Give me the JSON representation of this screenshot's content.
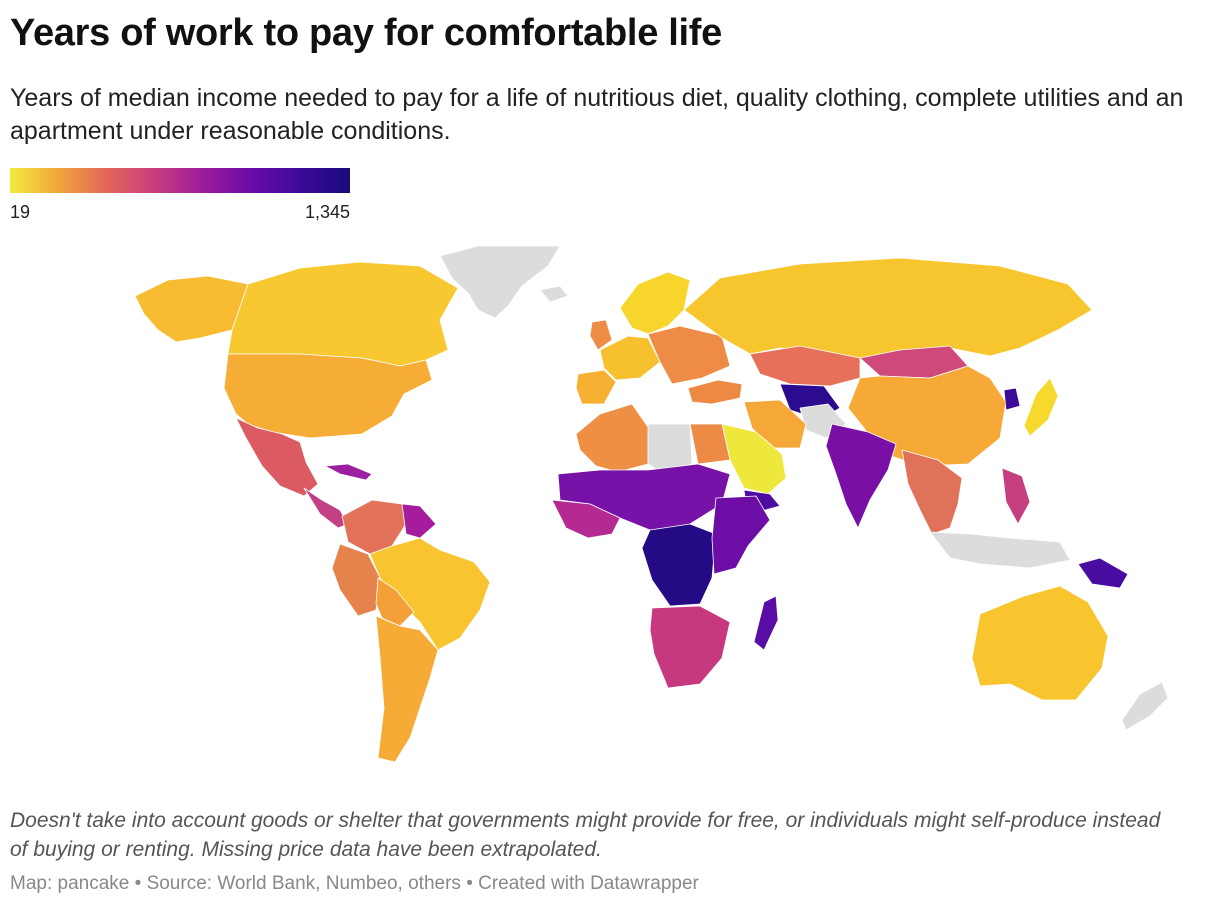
{
  "header": {
    "title": "Years of work to pay for comfortable life",
    "subtitle": "Years of median income needed to pay for a life of nutritious diet, quality clothing, complete utilities and an apartment under reasonable conditions."
  },
  "legend": {
    "min_label": "19",
    "max_label": "1,345",
    "gradient_colors": [
      "#f2ec3f",
      "#f2a43a",
      "#e2665a",
      "#c83c7e",
      "#9a1b9c",
      "#6a0aa8",
      "#3c0a98",
      "#1a0a7a"
    ]
  },
  "colors": {
    "no_data": "#dcdcdc",
    "border": "#ffffff"
  },
  "map": {
    "regions": [
      {
        "name": "Greenland",
        "color": "#dcdcdc"
      },
      {
        "name": "Alaska",
        "color": "#f7bc31"
      },
      {
        "name": "Canada",
        "color": "#f7c82f"
      },
      {
        "name": "United States",
        "color": "#f6ad35"
      },
      {
        "name": "Mexico",
        "color": "#dc5a62"
      },
      {
        "name": "Central America",
        "color": "#c23f84"
      },
      {
        "name": "Cuba",
        "color": "#9d1fa1"
      },
      {
        "name": "Colombia / Venezuela",
        "color": "#e2725a"
      },
      {
        "name": "Guyana / Suriname",
        "color": "#a51d9e"
      },
      {
        "name": "Peru / Ecuador",
        "color": "#e6834d"
      },
      {
        "name": "Brazil",
        "color": "#f8c42f"
      },
      {
        "name": "Bolivia",
        "color": "#f3a038"
      },
      {
        "name": "Argentina / Chile",
        "color": "#f6ab36"
      },
      {
        "name": "Iceland",
        "color": "#dcdcdc"
      },
      {
        "name": "Scandinavia",
        "color": "#f7d52c"
      },
      {
        "name": "United Kingdom",
        "color": "#ee8b44"
      },
      {
        "name": "Western Europe",
        "color": "#f7c02f"
      },
      {
        "name": "Iberia",
        "color": "#f6b133"
      },
      {
        "name": "Eastern Europe",
        "color": "#ee8b46"
      },
      {
        "name": "Russia",
        "color": "#f7c62f"
      },
      {
        "name": "Kazakhstan",
        "color": "#e6705a"
      },
      {
        "name": "Mongolia",
        "color": "#cf497a"
      },
      {
        "name": "China",
        "color": "#f6a936"
      },
      {
        "name": "North Korea",
        "color": "#3d0b9a"
      },
      {
        "name": "Japan",
        "color": "#f7d82c"
      },
      {
        "name": "Turkey",
        "color": "#ee8944"
      },
      {
        "name": "Central Asia",
        "color": "#2c0b90"
      },
      {
        "name": "Afghanistan",
        "color": "#dcdcdc"
      },
      {
        "name": "Iran",
        "color": "#f5a837"
      },
      {
        "name": "Saudi Arabia",
        "color": "#eee73c"
      },
      {
        "name": "Yemen",
        "color": "#4d0c9f"
      },
      {
        "name": "India",
        "color": "#7a0fa5"
      },
      {
        "name": "Southeast Asia",
        "color": "#e1725a"
      },
      {
        "name": "Indonesia",
        "color": "#dcdcdc"
      },
      {
        "name": "Philippines",
        "color": "#c43e80"
      },
      {
        "name": "Papua New Guinea",
        "color": "#4a0ca0"
      },
      {
        "name": "Australia",
        "color": "#f8c52e"
      },
      {
        "name": "New Zealand",
        "color": "#dcdcdc"
      },
      {
        "name": "Morocco / Algeria",
        "color": "#ee8f44"
      },
      {
        "name": "Libya",
        "color": "#dcdcdc"
      },
      {
        "name": "Egypt",
        "color": "#ed8a46"
      },
      {
        "name": "Sahel",
        "color": "#7612a7"
      },
      {
        "name": "West Africa",
        "color": "#b52992"
      },
      {
        "name": "Central Africa",
        "color": "#250a85"
      },
      {
        "name": "East Africa",
        "color": "#6c0ea6"
      },
      {
        "name": "Southern Africa",
        "color": "#c8387e"
      },
      {
        "name": "Madagascar",
        "color": "#5a0da4"
      }
    ]
  },
  "footer": {
    "note": "Doesn't take into account goods or shelter that governments might provide for free, or individuals might self-produce instead of buying or renting. Missing price data have been extrapolated.",
    "byline": "Map: pancake • Source: World Bank, Numbeo, others • Created with Datawrapper"
  }
}
